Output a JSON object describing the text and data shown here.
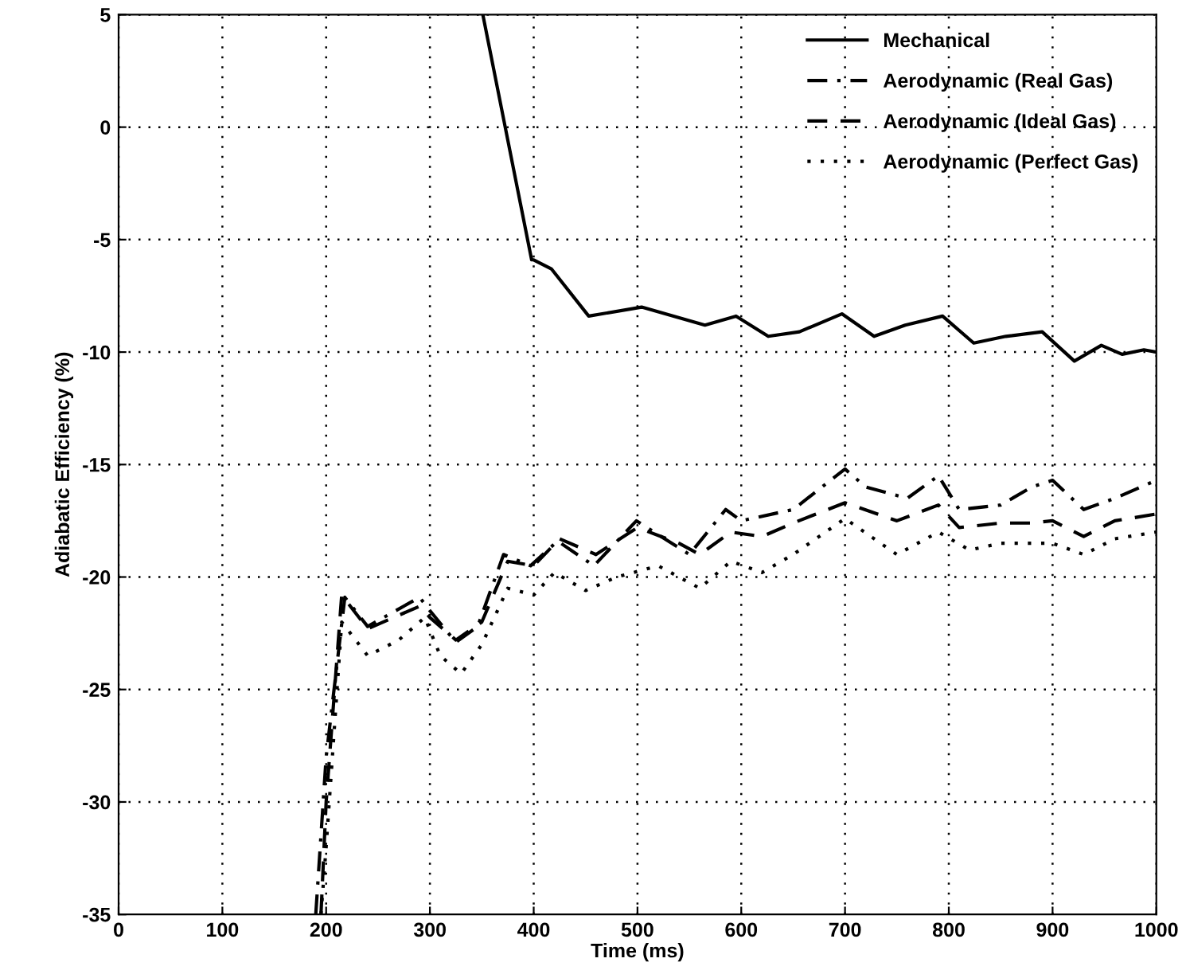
{
  "chart_data": {
    "type": "line",
    "xlabel": "Time (ms)",
    "ylabel": "Adiabatic Efficiency (%)",
    "xlim": [
      0,
      1000
    ],
    "xticks": [
      0,
      100,
      200,
      300,
      400,
      500,
      600,
      700,
      800,
      900,
      1000
    ],
    "ylim": [
      -35,
      5
    ],
    "yticks": [
      -35,
      -30,
      -25,
      -20,
      -15,
      -10,
      -5,
      0,
      5
    ],
    "grid": true,
    "legend": "top right",
    "series": [
      {
        "name": "Mechanical",
        "color": "#000000",
        "line_style": "solid",
        "x": [
          351,
          398,
          400,
          417,
          453,
          504,
          565,
          595,
          626,
          656,
          697,
          728,
          758,
          794,
          824,
          855,
          890,
          921,
          947,
          967,
          988,
          1000
        ],
        "values": [
          5,
          -5.9,
          -5.9,
          -6.3,
          -8.4,
          -8.0,
          -8.8,
          -8.4,
          -9.3,
          -9.1,
          -8.3,
          -9.3,
          -8.8,
          -8.4,
          -9.6,
          -9.3,
          -9.1,
          -10.4,
          -9.7,
          -10.1,
          -9.9,
          -10.0
        ]
      },
      {
        "name": "Aerodynamic (Real Gas)",
        "color": "#000000",
        "line_style": "dashdot",
        "x": [
          190,
          200,
          218,
          240,
          290,
          300,
          325,
          346,
          371,
          397,
          423,
          458,
          499,
          550,
          585,
          600,
          650,
          700,
          720,
          760,
          790,
          810,
          850,
          880,
          900,
          930,
          960,
          1000
        ],
        "values": [
          -35,
          -28,
          -20.9,
          -22.2,
          -20.9,
          -21.5,
          -22.9,
          -22.2,
          -19,
          -19.5,
          -18.4,
          -19.5,
          -17.5,
          -19,
          -17,
          -17.5,
          -17,
          -15.2,
          -16,
          -16.5,
          -15.5,
          -17,
          -16.8,
          -16,
          -15.7,
          -17,
          -16.5,
          -15.7
        ]
      },
      {
        "name": "Aerodynamic (Ideal Gas)",
        "color": "#000000",
        "line_style": "dashed",
        "x": [
          195,
          200,
          215,
          240,
          290,
          300,
          325,
          350,
          375,
          400,
          425,
          460,
          500,
          540,
          560,
          590,
          620,
          650,
          700,
          750,
          790,
          810,
          850,
          880,
          900,
          930,
          960,
          1000
        ],
        "values": [
          -35,
          -30,
          -20.8,
          -22.3,
          -21.3,
          -21.8,
          -22.8,
          -22,
          -19.3,
          -19.5,
          -18.3,
          -19,
          -17.8,
          -18.5,
          -19,
          -18,
          -18.2,
          -17.6,
          -16.7,
          -17.5,
          -16.8,
          -17.8,
          -17.6,
          -17.6,
          -17.5,
          -18.2,
          -17.5,
          -17.2
        ]
      },
      {
        "name": "Aerodynamic (Perfect Gas)",
        "color": "#000000",
        "line_style": "dotted",
        "x": [
          195,
          200,
          215,
          240,
          270,
          295,
          310,
          330,
          350,
          375,
          400,
          420,
          450,
          480,
          520,
          560,
          590,
          620,
          650,
          700,
          750,
          790,
          820,
          850,
          900,
          930,
          960,
          1000
        ],
        "values": [
          -35,
          -32,
          -22,
          -23.5,
          -22.8,
          -21.8,
          -23.5,
          -24.3,
          -23,
          -20.5,
          -20.8,
          -19.8,
          -20.6,
          -20,
          -19.5,
          -20.5,
          -19.3,
          -19.8,
          -19,
          -17.4,
          -19,
          -18,
          -18.8,
          -18.5,
          -18.5,
          -19,
          -18.3,
          -18
        ]
      }
    ]
  }
}
